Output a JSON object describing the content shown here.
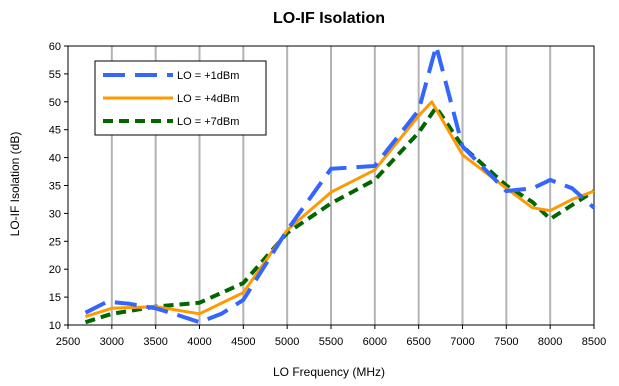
{
  "chart_data": {
    "type": "line",
    "title": "LO-IF Isolation",
    "xlabel": "LO Frequency (MHz)",
    "ylabel": "LO-IF Isolation (dB)",
    "xlim": [
      2500,
      8500
    ],
    "ylim": [
      10,
      60
    ],
    "xticks": [
      2500,
      3000,
      3500,
      4000,
      4500,
      5000,
      5500,
      6000,
      6500,
      7000,
      7500,
      8000,
      8500
    ],
    "yticks": [
      10,
      15,
      20,
      25,
      30,
      35,
      40,
      45,
      50,
      55,
      60
    ],
    "grid": "vertical",
    "legend_position": "top-left",
    "series": [
      {
        "name": "LO = +1dBm",
        "color": "#3366ff",
        "style": "long-dash",
        "x": [
          2700,
          2950,
          3200,
          3500,
          3750,
          4000,
          4250,
          4500,
          5000,
          5500,
          6000,
          6500,
          6700,
          7000,
          7500,
          7800,
          8000,
          8250,
          8500
        ],
        "y": [
          12.2,
          14.2,
          13.8,
          13.0,
          11.8,
          10.5,
          12.0,
          14.5,
          27.0,
          38.0,
          38.5,
          48.5,
          60.0,
          42.0,
          34.0,
          34.5,
          36.0,
          34.5,
          31.0
        ]
      },
      {
        "name": "LO = +4dBm",
        "color": "#ff9900",
        "style": "solid",
        "x": [
          2700,
          3000,
          3500,
          4000,
          4500,
          5000,
          5500,
          6000,
          6500,
          6650,
          7000,
          7500,
          7800,
          8000,
          8250,
          8500
        ],
        "y": [
          11.5,
          13.0,
          13.3,
          12.0,
          15.8,
          27.0,
          33.8,
          37.8,
          47.5,
          50.0,
          40.5,
          34.5,
          31.0,
          30.5,
          32.5,
          34.0
        ]
      },
      {
        "name": "LO = +7dBm",
        "color": "#006600",
        "style": "dash",
        "x": [
          2700,
          3000,
          3500,
          4000,
          4500,
          5000,
          5500,
          6000,
          6500,
          6700,
          7000,
          7500,
          7800,
          8000,
          8250,
          8500
        ],
        "y": [
          10.5,
          12.0,
          13.3,
          14.0,
          17.5,
          26.5,
          31.8,
          36.0,
          44.5,
          49.0,
          42.0,
          35.0,
          32.0,
          29.0,
          31.5,
          34.0
        ]
      }
    ]
  }
}
